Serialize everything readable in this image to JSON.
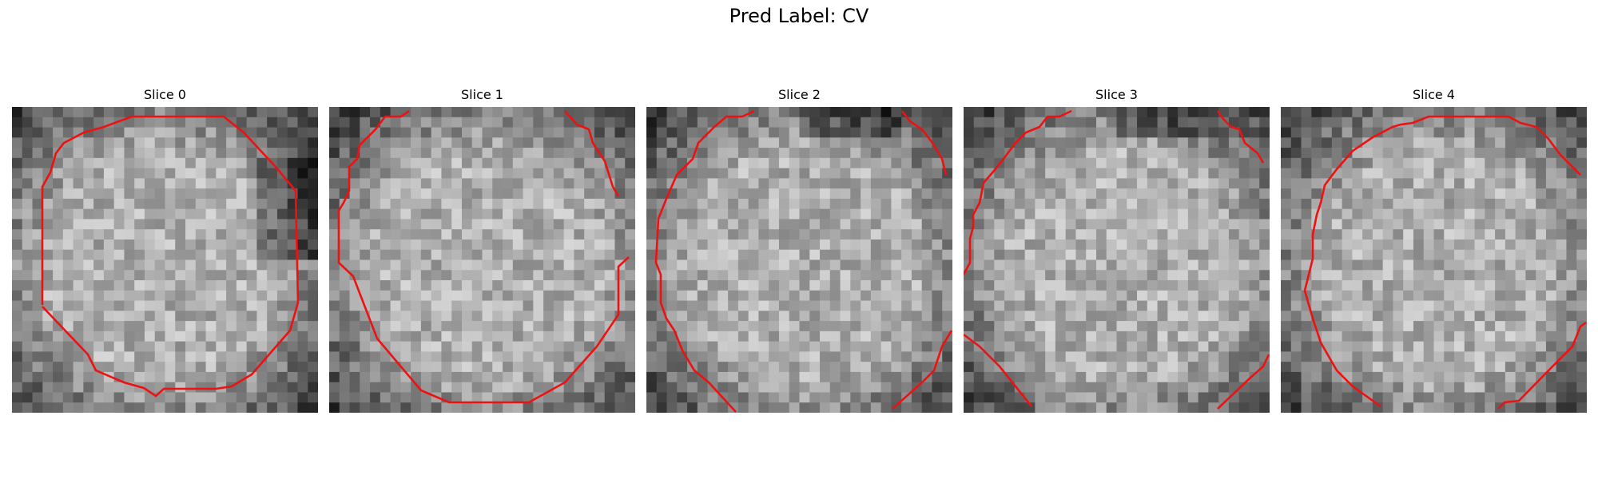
{
  "figure": {
    "title": "Pred Label: CV"
  },
  "panels": [
    {
      "title": "Slice 0"
    },
    {
      "title": "Slice 1"
    },
    {
      "title": "Slice 2"
    },
    {
      "title": "Slice 3"
    },
    {
      "title": "Slice 4"
    }
  ],
  "colors": {
    "contour": "#ee1111",
    "background": "#ffffff"
  }
}
